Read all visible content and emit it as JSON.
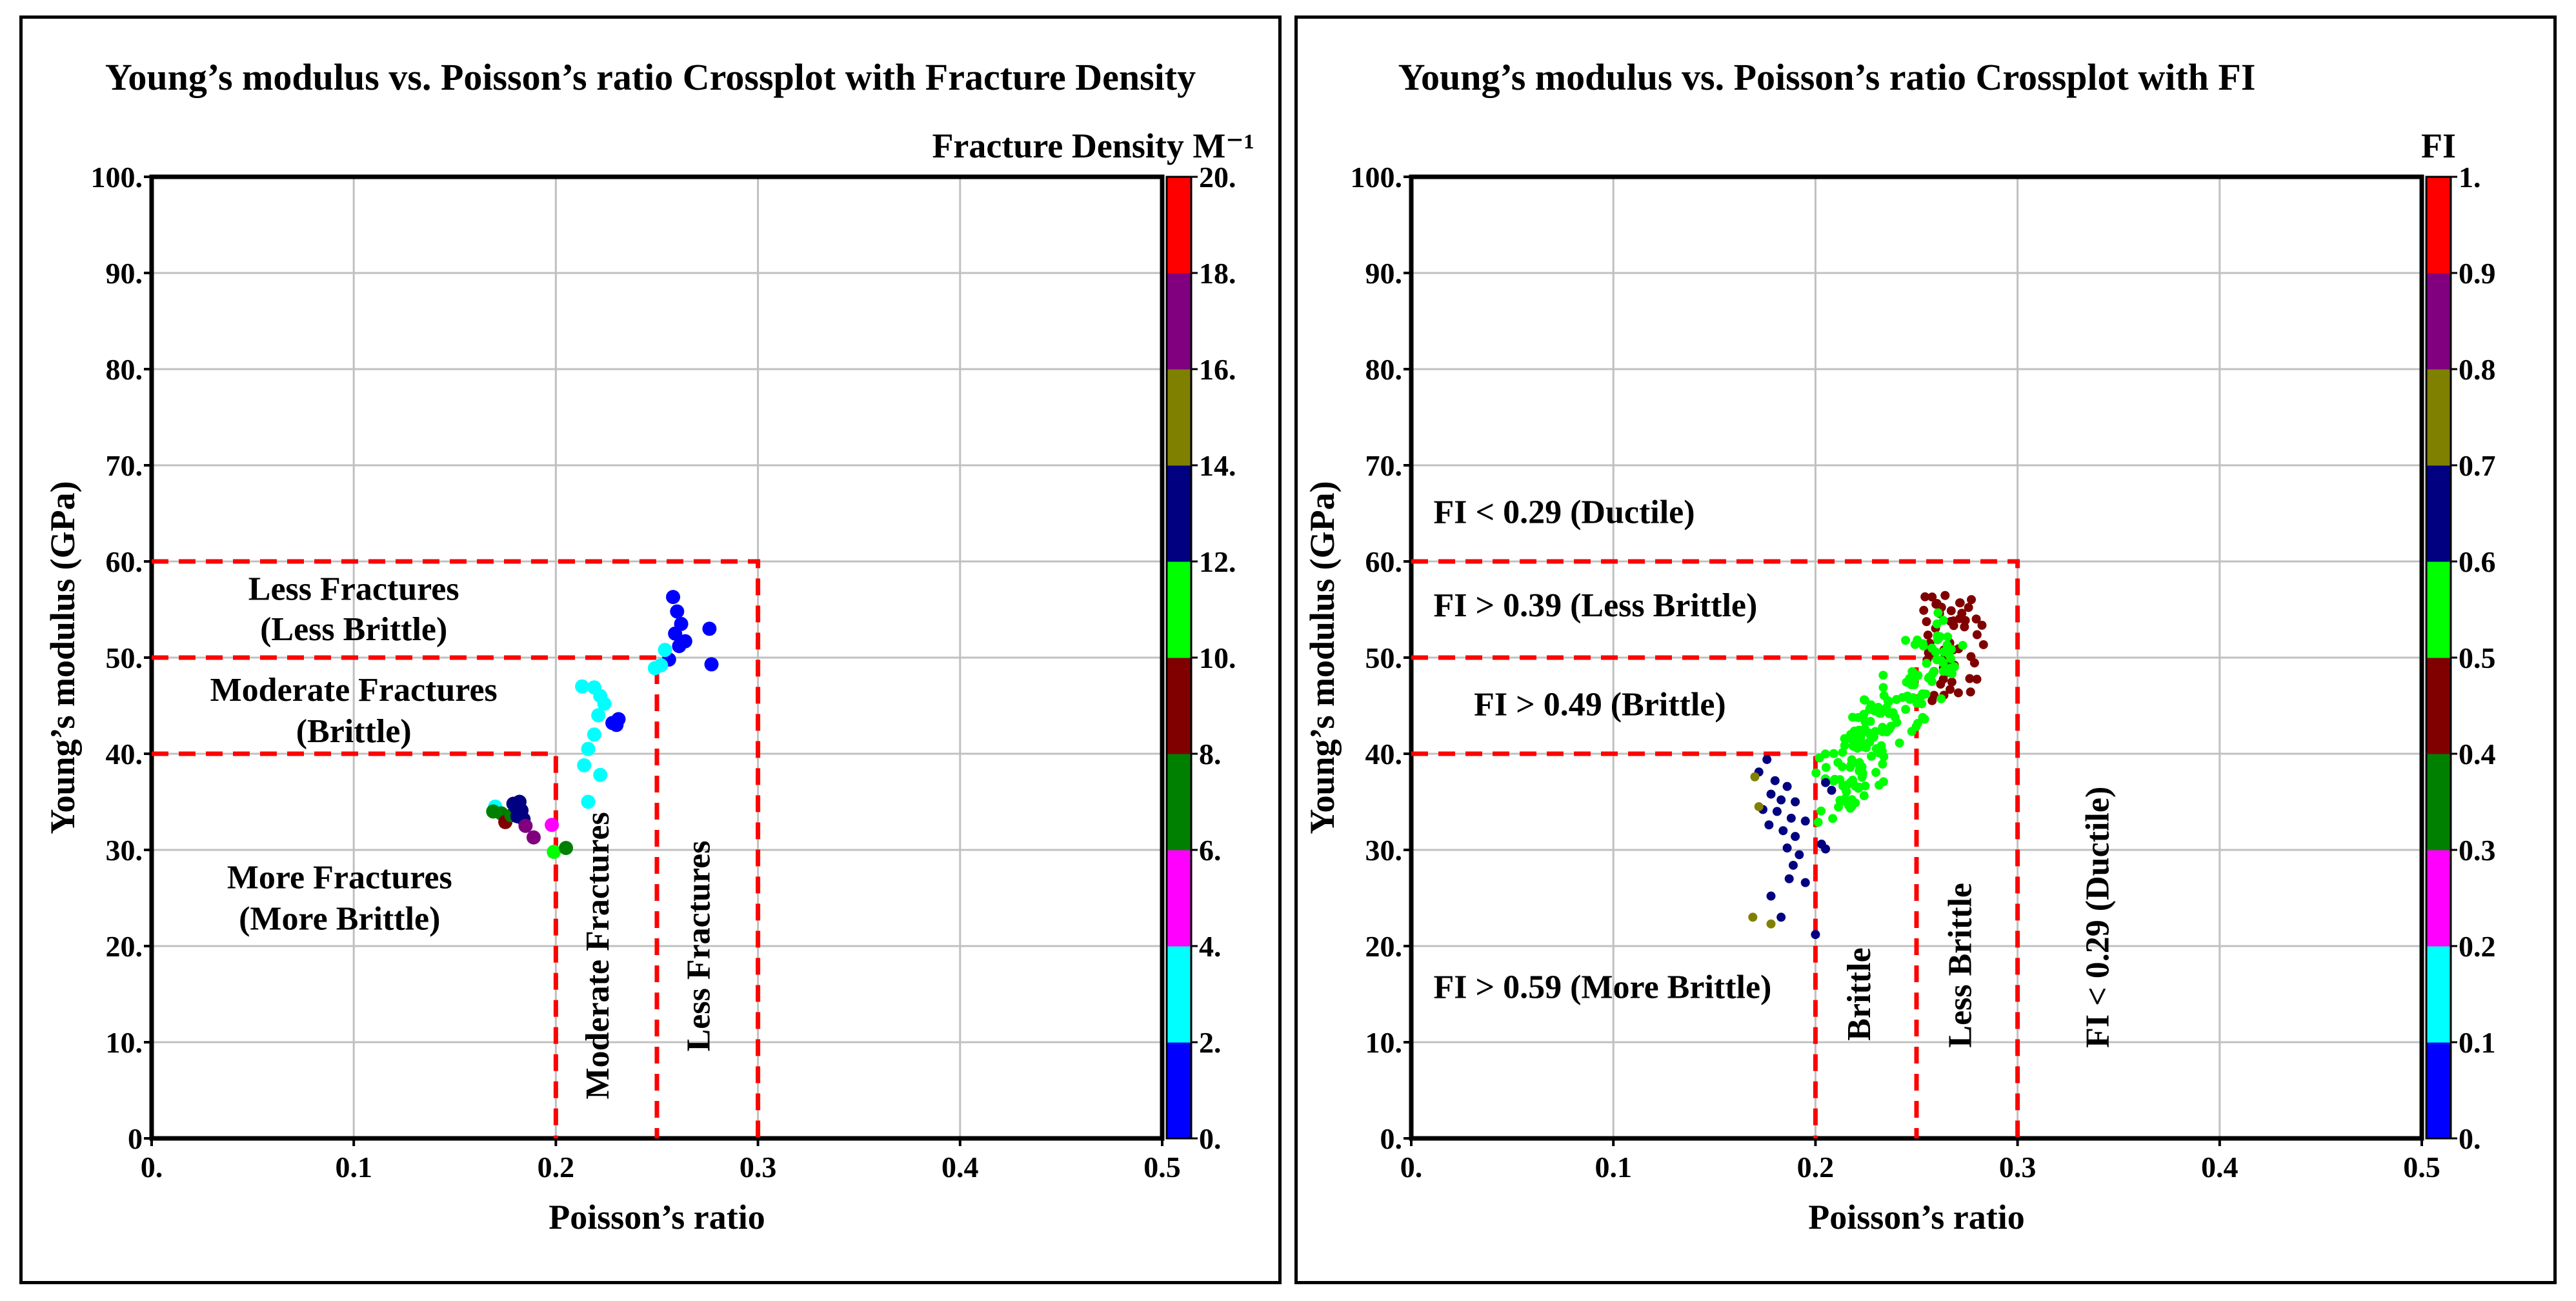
{
  "chart_data": [
    {
      "type": "scatter",
      "title": "Young’s modulus vs. Poisson’s ratio Crossplot with Fracture Density",
      "xlabel": "Poisson’s ratio",
      "ylabel": "Young’s modulus (GPa)",
      "xlim": [
        0,
        0.5
      ],
      "ylim": [
        0,
        100
      ],
      "grid": true,
      "x_ticks": [
        {
          "v": 0,
          "label": "0."
        },
        {
          "v": 0.1,
          "label": "0.1"
        },
        {
          "v": 0.2,
          "label": "0.2"
        },
        {
          "v": 0.3,
          "label": "0.3"
        },
        {
          "v": 0.4,
          "label": "0.4"
        },
        {
          "v": 0.5,
          "label": "0.5"
        }
      ],
      "y_ticks": [
        {
          "v": 0,
          "label": "0"
        },
        {
          "v": 10,
          "label": "10."
        },
        {
          "v": 20,
          "label": "20."
        },
        {
          "v": 30,
          "label": "30."
        },
        {
          "v": 40,
          "label": "40."
        },
        {
          "v": 50,
          "label": "50."
        },
        {
          "v": 60,
          "label": "60."
        },
        {
          "v": 70,
          "label": "70."
        },
        {
          "v": 80,
          "label": "80."
        },
        {
          "v": 90,
          "label": "90."
        },
        {
          "v": 100,
          "label": "100."
        }
      ],
      "colorbar": {
        "title": "Fracture Density M⁻¹",
        "range": [
          0,
          20
        ],
        "colors": [
          "#0000ff",
          "#00ffff",
          "#ff00ff",
          "#008000",
          "#800000",
          "#00ff00",
          "#000080",
          "#808000",
          "#800080",
          "#ff0000"
        ],
        "tick_labels": [
          "0.",
          "2.",
          "4.",
          "6.",
          "8.",
          "10.",
          "12.",
          "14.",
          "16.",
          "18.",
          "20."
        ]
      },
      "boundaries": [
        {
          "x": [
            0,
            0.2,
            0.2
          ],
          "y": [
            40,
            40,
            0
          ]
        },
        {
          "x": [
            0,
            0.25,
            0.25
          ],
          "y": [
            50,
            50,
            0
          ]
        },
        {
          "x": [
            0,
            0.3,
            0.3
          ],
          "y": [
            60,
            60,
            0
          ]
        }
      ],
      "annotations": [
        {
          "text": "Less Fractures",
          "x": 0.1,
          "y": 56.0,
          "rotate": false
        },
        {
          "text": "(Less Brittle)",
          "x": 0.1,
          "y": 51.8,
          "rotate": false
        },
        {
          "text": "Moderate Fractures",
          "x": 0.1,
          "y": 45.5,
          "rotate": false
        },
        {
          "text": "(Brittle)",
          "x": 0.1,
          "y": 41.2,
          "rotate": false
        },
        {
          "text": "More Fractures",
          "x": 0.093,
          "y": 26.0,
          "rotate": false
        },
        {
          "text": "(More Brittle)",
          "x": 0.093,
          "y": 21.7,
          "rotate": false
        },
        {
          "text": "Moderate Fractures",
          "x": 0.226,
          "y": 19.0,
          "rotate": true
        },
        {
          "text": "Less Fractures",
          "x": 0.276,
          "y": 20.0,
          "rotate": true
        }
      ],
      "points": [
        {
          "x": 0.258,
          "y": 56.3,
          "c": 1
        },
        {
          "x": 0.26,
          "y": 54.8,
          "c": 1
        },
        {
          "x": 0.262,
          "y": 53.5,
          "c": 1
        },
        {
          "x": 0.259,
          "y": 52.5,
          "c": 1
        },
        {
          "x": 0.264,
          "y": 51.7,
          "c": 1
        },
        {
          "x": 0.261,
          "y": 51.2,
          "c": 1
        },
        {
          "x": 0.276,
          "y": 53.0,
          "c": 1
        },
        {
          "x": 0.277,
          "y": 49.3,
          "c": 1
        },
        {
          "x": 0.256,
          "y": 49.8,
          "c": 1
        },
        {
          "x": 0.254,
          "y": 50.8,
          "c": 3
        },
        {
          "x": 0.252,
          "y": 49.2,
          "c": 3
        },
        {
          "x": 0.249,
          "y": 48.9,
          "c": 3
        },
        {
          "x": 0.213,
          "y": 47.0,
          "c": 3
        },
        {
          "x": 0.219,
          "y": 46.9,
          "c": 3
        },
        {
          "x": 0.222,
          "y": 46.0,
          "c": 3
        },
        {
          "x": 0.224,
          "y": 45.2,
          "c": 3
        },
        {
          "x": 0.221,
          "y": 44.0,
          "c": 3
        },
        {
          "x": 0.219,
          "y": 42.0,
          "c": 3
        },
        {
          "x": 0.216,
          "y": 40.5,
          "c": 3
        },
        {
          "x": 0.214,
          "y": 38.8,
          "c": 3
        },
        {
          "x": 0.222,
          "y": 37.8,
          "c": 3
        },
        {
          "x": 0.216,
          "y": 35.0,
          "c": 3
        },
        {
          "x": 0.23,
          "y": 43.0,
          "c": 1
        },
        {
          "x": 0.231,
          "y": 43.6,
          "c": 1
        },
        {
          "x": 0.228,
          "y": 43.2,
          "c": 1
        },
        {
          "x": 0.17,
          "y": 34.5,
          "c": 3
        },
        {
          "x": 0.169,
          "y": 34.0,
          "c": 7
        },
        {
          "x": 0.173,
          "y": 33.8,
          "c": 7
        },
        {
          "x": 0.175,
          "y": 32.9,
          "c": 9
        },
        {
          "x": 0.178,
          "y": 33.6,
          "c": 7
        },
        {
          "x": 0.18,
          "y": 34.5,
          "c": 13
        },
        {
          "x": 0.182,
          "y": 35.0,
          "c": 13
        },
        {
          "x": 0.183,
          "y": 34.1,
          "c": 13
        },
        {
          "x": 0.184,
          "y": 33.2,
          "c": 13
        },
        {
          "x": 0.181,
          "y": 33.5,
          "c": 13
        },
        {
          "x": 0.179,
          "y": 34.8,
          "c": 13
        },
        {
          "x": 0.185,
          "y": 32.5,
          "c": 17
        },
        {
          "x": 0.189,
          "y": 31.3,
          "c": 17
        },
        {
          "x": 0.198,
          "y": 32.6,
          "c": 5
        },
        {
          "x": 0.199,
          "y": 29.8,
          "c": 11
        },
        {
          "x": 0.205,
          "y": 30.2,
          "c": 7
        }
      ]
    },
    {
      "type": "scatter",
      "title": "Young’s modulus vs. Poisson’s ratio Crossplot with FI",
      "xlabel": "Poisson’s ratio",
      "ylabel": "Young’s modulus (GPa)",
      "xlim": [
        0,
        0.5
      ],
      "ylim": [
        0,
        100
      ],
      "grid": true,
      "x_ticks": [
        {
          "v": 0,
          "label": "0."
        },
        {
          "v": 0.1,
          "label": "0.1"
        },
        {
          "v": 0.2,
          "label": "0.2"
        },
        {
          "v": 0.3,
          "label": "0.3"
        },
        {
          "v": 0.4,
          "label": "0.4"
        },
        {
          "v": 0.5,
          "label": "0.5"
        }
      ],
      "y_ticks": [
        {
          "v": 0,
          "label": "0."
        },
        {
          "v": 10,
          "label": "10."
        },
        {
          "v": 20,
          "label": "20."
        },
        {
          "v": 30,
          "label": "30."
        },
        {
          "v": 40,
          "label": "40."
        },
        {
          "v": 50,
          "label": "50."
        },
        {
          "v": 60,
          "label": "60."
        },
        {
          "v": 70,
          "label": "70."
        },
        {
          "v": 80,
          "label": "80."
        },
        {
          "v": 90,
          "label": "90."
        },
        {
          "v": 100,
          "label": "100."
        }
      ],
      "colorbar": {
        "title": "FI",
        "range": [
          0,
          1
        ],
        "colors": [
          "#0000ff",
          "#00ffff",
          "#ff00ff",
          "#008000",
          "#800000",
          "#00ff00",
          "#000080",
          "#808000",
          "#800080",
          "#ff0000"
        ],
        "tick_labels": [
          "0.",
          "0.1",
          "0.2",
          "0.3",
          "0.4",
          "0.5",
          "0.6",
          "0.7",
          "0.8",
          "0.9",
          "1."
        ]
      },
      "boundaries": [
        {
          "x": [
            0,
            0.2,
            0.2
          ],
          "y": [
            40,
            40,
            0
          ]
        },
        {
          "x": [
            0,
            0.25,
            0.25
          ],
          "y": [
            50,
            50,
            0
          ]
        },
        {
          "x": [
            0,
            0.3,
            0.3
          ],
          "y": [
            60,
            60,
            0
          ]
        }
      ],
      "annotations": [
        {
          "text": "FI < 0.29 (Ductile)",
          "x": 0.011,
          "y": 64.0,
          "rotate": false,
          "anchor": "start"
        },
        {
          "text": "FI > 0.39 (Less Brittle)",
          "x": 0.011,
          "y": 54.3,
          "rotate": false,
          "anchor": "start"
        },
        {
          "text": "FI > 0.49 (Brittle)",
          "x": 0.031,
          "y": 44.0,
          "rotate": false,
          "anchor": "start"
        },
        {
          "text": "FI > 0.59 (More Brittle)",
          "x": 0.011,
          "y": 14.6,
          "rotate": false,
          "anchor": "start"
        },
        {
          "text": "Brittle",
          "x": 0.227,
          "y": 15.0,
          "rotate": true
        },
        {
          "text": "Less Brittle",
          "x": 0.277,
          "y": 18.0,
          "rotate": true
        },
        {
          "text": "FI < 0.29 (Ductile)",
          "x": 0.345,
          "y": 23.0,
          "rotate": true
        }
      ]
    }
  ]
}
